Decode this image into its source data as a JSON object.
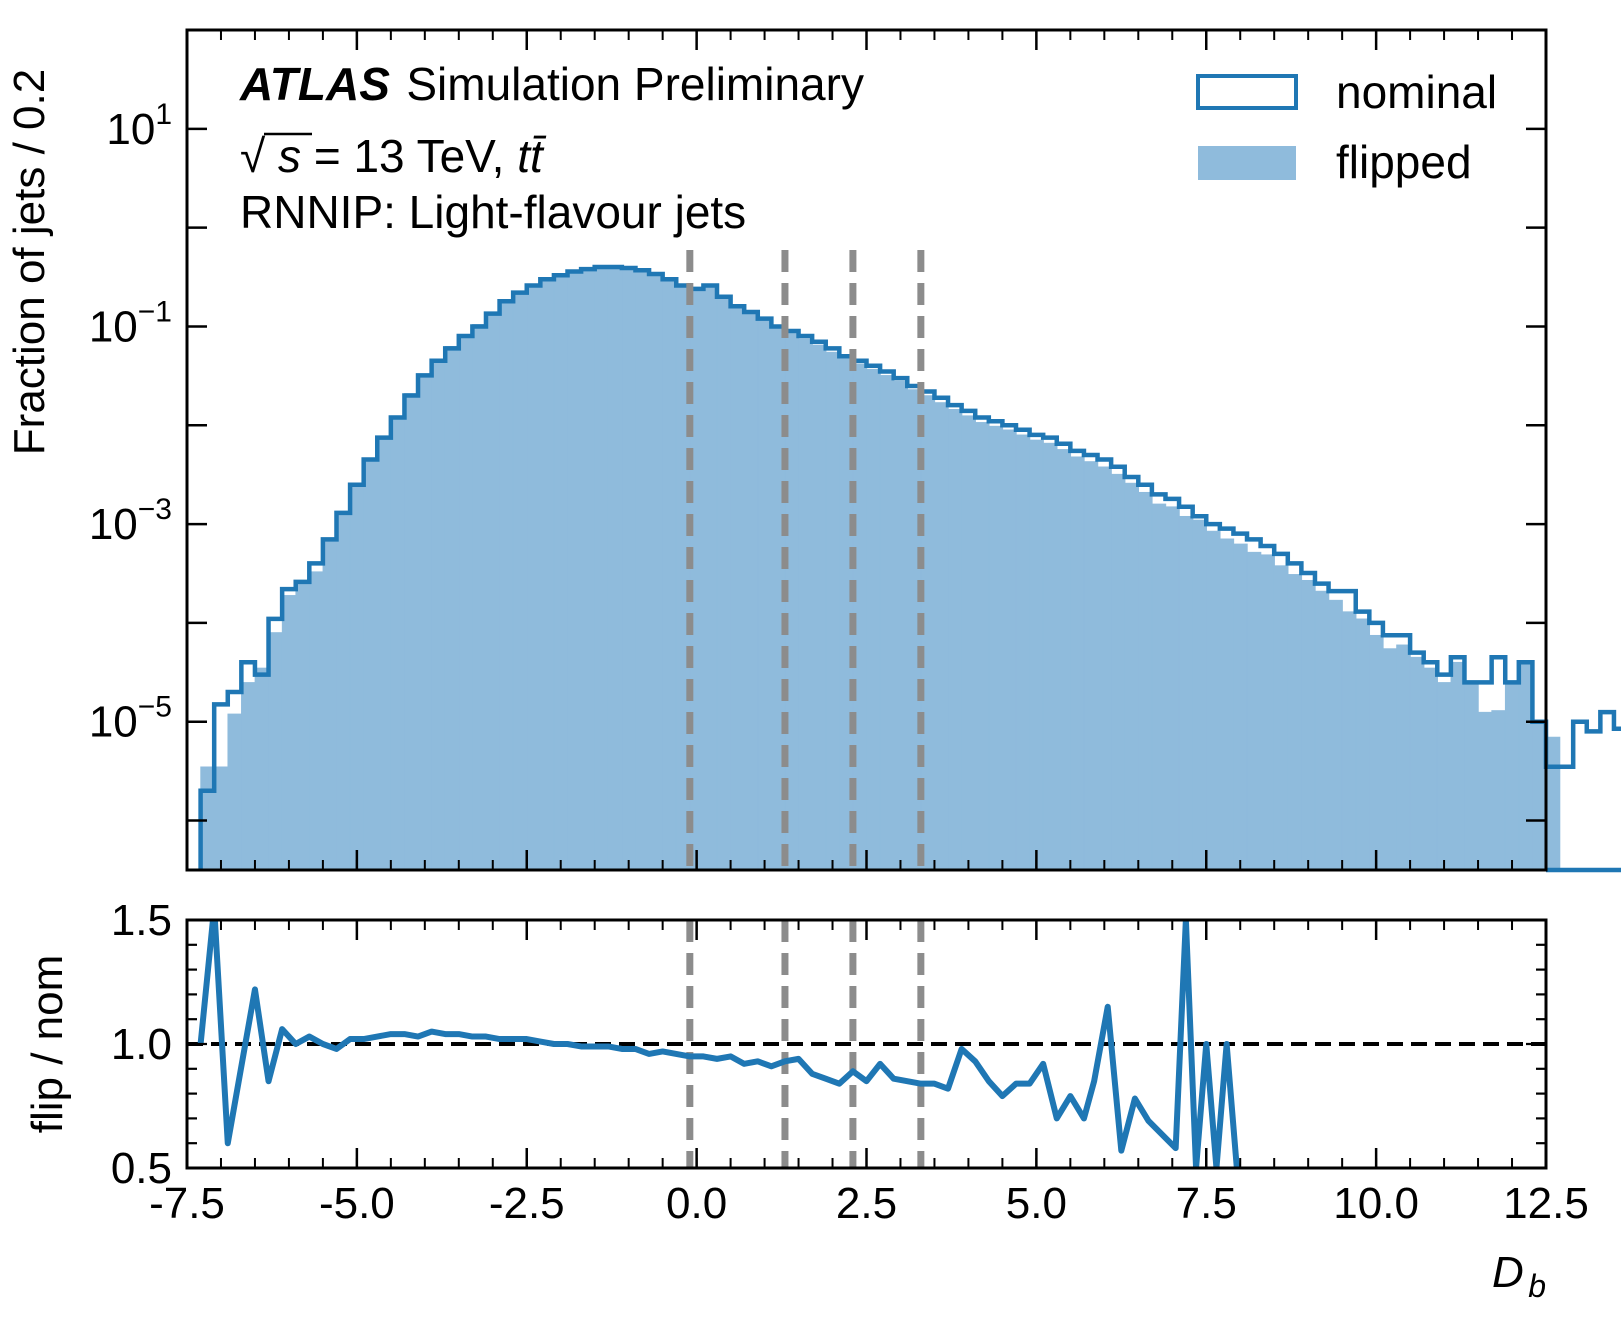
{
  "colors": {
    "nominal": "#1f77b4",
    "flipped": "#8fbbdc",
    "wp_line": "#8c8c8c",
    "reference_line": "#000000"
  },
  "annotations": {
    "atlas": "ATLAS",
    "label": "Simulation Preliminary",
    "energy_prefix": "√",
    "energy_s": "s",
    "energy_mid": " = 13 TeV, ",
    "energy_process": "tt̄",
    "sample": "RNNIP: Light-flavour jets"
  },
  "chart_data": [
    {
      "type": "area",
      "panel": "main",
      "ylabel": "Fraction of jets / 0.2",
      "yscale": "log",
      "ylim": [
        3.16e-07,
        100
      ],
      "xlim": [
        -7.5,
        12.5
      ],
      "yticks": [
        {
          "value": 10,
          "base": "10",
          "exp": "1"
        },
        {
          "value": 0.1,
          "base": "10",
          "exp": "−1"
        },
        {
          "value": 0.001,
          "base": "10",
          "exp": "−3"
        },
        {
          "value": 1e-05,
          "base": "10",
          "exp": "−5"
        }
      ],
      "bin_width": 0.2,
      "bin_start": -7.3,
      "legend": {
        "position": "top-right",
        "entries": [
          "nominal",
          "flipped"
        ]
      },
      "series": [
        {
          "name": "nominal",
          "style": "step",
          "values": [
            2e-06,
            1.5e-05,
            2e-05,
            4e-05,
            3e-05,
            0.00011,
            0.00022,
            0.00026,
            0.0004,
            0.0007,
            0.0013,
            0.0025,
            0.0045,
            0.0075,
            0.012,
            0.02,
            0.032,
            0.045,
            0.06,
            0.08,
            0.1,
            0.135,
            0.18,
            0.22,
            0.26,
            0.3,
            0.33,
            0.36,
            0.38,
            0.4,
            0.4,
            0.39,
            0.37,
            0.34,
            0.3,
            0.26,
            0.24,
            0.26,
            0.2,
            0.16,
            0.14,
            0.12,
            0.1,
            0.09,
            0.08,
            0.07,
            0.06,
            0.05,
            0.045,
            0.04,
            0.035,
            0.03,
            0.025,
            0.022,
            0.019,
            0.016,
            0.014,
            0.012,
            0.011,
            0.01,
            0.009,
            0.008,
            0.0075,
            0.0065,
            0.0055,
            0.005,
            0.0045,
            0.0038,
            0.003,
            0.0025,
            0.002,
            0.0018,
            0.0015,
            0.0012,
            0.001,
            0.0009,
            0.0008,
            0.0007,
            0.0006,
            0.0005,
            0.0004,
            0.00032,
            0.00025,
            0.00021,
            0.00021,
            0.00013,
            0.0001,
            7.5e-05,
            7.5e-05,
            5e-05,
            4e-05,
            3e-05,
            4.5e-05,
            2.5e-05,
            2.5e-05,
            4.5e-05,
            2.5e-05,
            4e-05,
            1e-05,
            3.5e-06,
            3.5e-06,
            1e-05,
            8e-06,
            1.25e-05,
            8.5e-06,
            1.25e-05,
            3.5e-06,
            null,
            null,
            3.5e-06,
            null,
            null,
            null,
            null,
            null,
            3.5e-06,
            null,
            null,
            null,
            null,
            null,
            null,
            null,
            null,
            null,
            null,
            null,
            null,
            null,
            null,
            null,
            null,
            null,
            null,
            null
          ]
        },
        {
          "name": "flipped",
          "style": "fill",
          "values": [
            3.5e-06,
            3.5e-06,
            1.2e-05,
            2.5e-05,
            3.5e-05,
            8e-05,
            0.00019,
            0.00025,
            0.00033,
            0.0007,
            0.00135,
            0.0025,
            0.0046,
            0.0077,
            0.0125,
            0.021,
            0.033,
            0.047,
            0.063,
            0.083,
            0.105,
            0.14,
            0.185,
            0.225,
            0.265,
            0.305,
            0.335,
            0.365,
            0.385,
            0.402,
            0.4,
            0.39,
            0.37,
            0.34,
            0.3,
            0.26,
            0.24,
            0.255,
            0.195,
            0.155,
            0.135,
            0.115,
            0.095,
            0.085,
            0.075,
            0.065,
            0.055,
            0.047,
            0.042,
            0.037,
            0.032,
            0.028,
            0.023,
            0.02,
            0.017,
            0.0145,
            0.0125,
            0.0107,
            0.0098,
            0.009,
            0.008,
            0.0071,
            0.0066,
            0.0057,
            0.0048,
            0.0043,
            0.0038,
            0.0032,
            0.0026,
            0.0021,
            0.0016,
            0.0015,
            0.0012,
            0.0011,
            0.00085,
            0.00071,
            0.00063,
            0.00052,
            0.00049,
            0.00038,
            0.00031,
            0.00027,
            0.00021,
            0.00017,
            0.00013,
            0.00011,
            7.5e-05,
            5.5e-05,
            6e-05,
            4.5e-05,
            3.5e-05,
            2.5e-05,
            4e-05,
            2.5e-05,
            1.25e-05,
            1.3e-05,
            2.5e-05,
            3.8e-05,
            9.5e-06,
            7e-06,
            null,
            null,
            null,
            null,
            null,
            null,
            null,
            null,
            null,
            null,
            null,
            null,
            null,
            null,
            null,
            null,
            null,
            null,
            null,
            null,
            null,
            null,
            null,
            null,
            null,
            null,
            null,
            null,
            null,
            null,
            null,
            null,
            null,
            null
          ]
        }
      ],
      "vertical_lines": [
        -0.1,
        1.3,
        2.3,
        3.3
      ]
    },
    {
      "type": "line",
      "panel": "ratio",
      "xlabel_base": "D",
      "xlabel_sub": "b",
      "ylabel": "flip / nom",
      "ylim": [
        0.5,
        1.5
      ],
      "xlim": [
        -7.5,
        12.5
      ],
      "yticks": [
        "0.5",
        "1.0",
        "1.5"
      ],
      "xticks": [
        "-7.5",
        "-5.0",
        "-2.5",
        "0.0",
        "2.5",
        "5.0",
        "7.5",
        "10.0",
        "12.5"
      ],
      "reference_line": 1.0,
      "vertical_lines": [
        -0.1,
        1.3,
        2.3,
        3.3
      ],
      "series": [
        {
          "name": "flip / nom",
          "x": [
            -7.3,
            -7.1,
            -6.9,
            -6.5,
            -6.3,
            -6.1,
            -5.9,
            -5.7,
            -5.5,
            -5.3,
            -5.1,
            -4.9,
            -4.7,
            -4.5,
            -4.3,
            -4.1,
            -3.9,
            -3.7,
            -3.5,
            -3.3,
            -3.1,
            -2.9,
            -2.7,
            -2.5,
            -2.3,
            -2.1,
            -1.9,
            -1.7,
            -1.5,
            -1.3,
            -1.1,
            -0.9,
            -0.7,
            -0.5,
            -0.3,
            -0.1,
            0.1,
            0.3,
            0.5,
            0.7,
            0.9,
            1.1,
            1.3,
            1.5,
            1.7,
            1.9,
            2.1,
            2.3,
            2.5,
            2.7,
            2.9,
            3.1,
            3.3,
            3.5,
            3.7,
            3.9,
            4.1,
            4.3,
            4.5,
            4.7,
            4.9,
            5.1,
            5.3,
            5.5,
            5.7,
            5.85,
            6.05,
            6.25,
            6.45,
            6.65,
            7.05,
            7.2,
            7.35,
            7.5,
            7.65,
            7.8,
            7.95
          ],
          "y": [
            1.0,
            1.55,
            0.6,
            1.22,
            0.85,
            1.06,
            1.0,
            1.03,
            1.0,
            0.98,
            1.02,
            1.02,
            1.03,
            1.04,
            1.04,
            1.03,
            1.05,
            1.04,
            1.04,
            1.03,
            1.03,
            1.02,
            1.02,
            1.02,
            1.01,
            1.0,
            1.0,
            0.99,
            0.99,
            0.99,
            0.98,
            0.98,
            0.96,
            0.97,
            0.96,
            0.95,
            0.95,
            0.94,
            0.95,
            0.92,
            0.93,
            0.91,
            0.93,
            0.94,
            0.88,
            0.86,
            0.84,
            0.89,
            0.85,
            0.92,
            0.86,
            0.85,
            0.84,
            0.84,
            0.82,
            0.98,
            0.93,
            0.85,
            0.79,
            0.84,
            0.84,
            0.92,
            0.7,
            0.79,
            0.7,
            0.85,
            1.15,
            0.57,
            0.78,
            0.69,
            0.58,
            1.5,
            0.5,
            1.0,
            0.5,
            1.0,
            0.5
          ]
        }
      ]
    }
  ]
}
